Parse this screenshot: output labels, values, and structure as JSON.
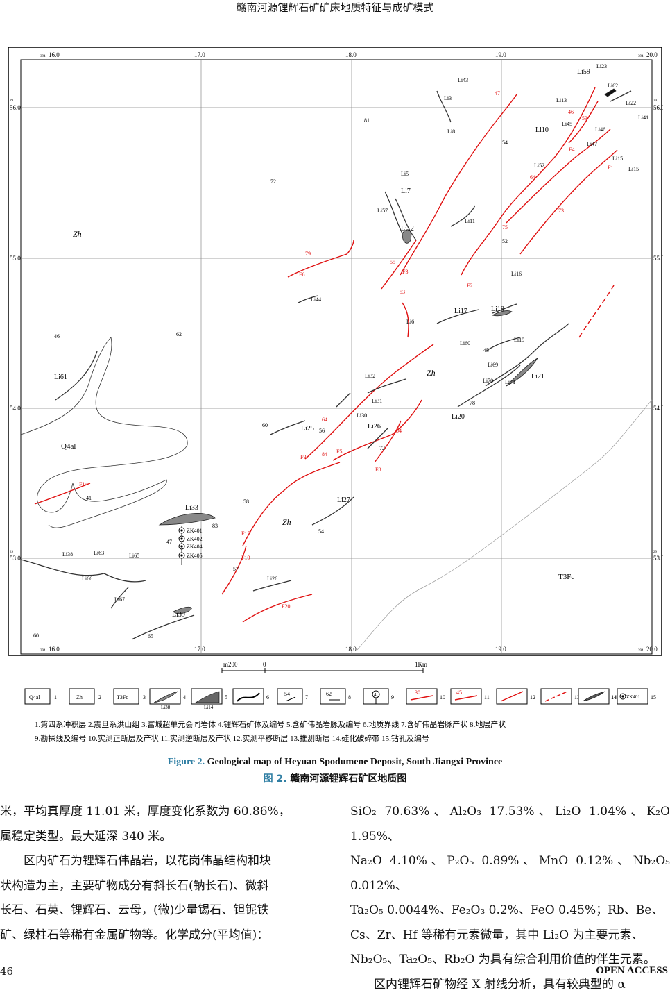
{
  "header": {
    "running_title": "赣南河源锂辉石矿矿床地质特征与成矿模式"
  },
  "map": {
    "x_ticks": [
      "16.0",
      "17.0",
      "18.0",
      "19.0",
      "20.0"
    ],
    "x_tick_prefix": "394",
    "y_ticks": [
      "56.0",
      "55.0",
      "54.0",
      "53.0"
    ],
    "y_tick_prefix": "29",
    "units": [
      {
        "label": "Zh"
      },
      {
        "label": "Zh"
      },
      {
        "label": "Zh"
      },
      {
        "label": "T3Fc"
      },
      {
        "label": "Q4al"
      }
    ],
    "ore_labels": [
      "Li23",
      "Li59",
      "Li43",
      "Li3",
      "Li62",
      "Li13",
      "Li22",
      "Li41",
      "Li45",
      "Li8",
      "Li10",
      "Li46",
      "Li47",
      "Li15",
      "Li52",
      "Li5",
      "Li7",
      "Li57",
      "Li12",
      "Li11",
      "Li16",
      "Li44",
      "Li17",
      "Li18",
      "Li6",
      "Li60",
      "Li19",
      "Li69",
      "Li32",
      "Li70",
      "Li71",
      "Li21",
      "Li31",
      "Li30",
      "Li25",
      "Li26",
      "Li20",
      "Li61",
      "Li27",
      "Li33",
      "Li38",
      "Li63",
      "Li65",
      "Li66",
      "Li67",
      "Li39",
      "Li26",
      "Li15"
    ],
    "fault_labels": [
      "F4",
      "F1",
      "F2",
      "F3",
      "F6",
      "F5",
      "F8",
      "F9",
      "F14",
      "F17",
      "F19",
      "F20"
    ],
    "attitudes": [
      "47",
      "46",
      "53",
      "64",
      "73",
      "75",
      "52",
      "54",
      "81",
      "72",
      "79",
      "55",
      "53",
      "45",
      "46",
      "62",
      "78",
      "60",
      "64",
      "56",
      "84",
      "54",
      "72",
      "58",
      "83",
      "47",
      "57",
      "41",
      "54",
      "60",
      "65"
    ],
    "drill_holes": [
      "ZK401",
      "ZK402",
      "ZK404",
      "ZK405"
    ],
    "scale": {
      "left": "m200",
      "zero": "0",
      "right": "1Km"
    },
    "legend_items": [
      {
        "num": "1",
        "sym": "Q4al"
      },
      {
        "num": "2",
        "sym": "Zh"
      },
      {
        "num": "3",
        "sym": "T3Fc"
      },
      {
        "num": "4",
        "sym": "Li38"
      },
      {
        "num": "5",
        "sym": "Li14"
      },
      {
        "num": "6",
        "sym": ""
      },
      {
        "num": "7",
        "sym": "54"
      },
      {
        "num": "8",
        "sym": "62"
      },
      {
        "num": "9",
        "sym": "4"
      },
      {
        "num": "10",
        "sym": "30"
      },
      {
        "num": "11",
        "sym": "45"
      },
      {
        "num": "12",
        "sym": ""
      },
      {
        "num": "13",
        "sym": ""
      },
      {
        "num": "14",
        "sym": ""
      },
      {
        "num": "15",
        "sym": "ZK401"
      }
    ],
    "legend_text_1": "1.第四系冲积层  2.震旦系洪山组  3.富城超单元会同岩体  4.锂辉石矿体及编号  5.含矿伟晶岩脉及编号  6.地质界线  7.含矿伟晶岩脉产状  8.地层产状",
    "legend_text_2": "9.勘探线及编号  10.实测正断层及产状  11.实测逆断层及产状  12.实测平移断层  13.推测断层  14.硅化破碎带  15.钻孔及编号"
  },
  "caption": {
    "en_num": "Figure 2.",
    "en_text": " Geological map of Heyuan Spodumene Deposit, South Jiangxi Province",
    "cn_num": "图 2.",
    "cn_text": "  赣南河源锂辉石矿区地质图"
  },
  "body": {
    "left": [
      "米，平均真厚度 11.01 米，厚度变化系数为 60.86%，",
      "属稳定类型。最大延深 340 米。",
      "　　区内矿石为锂辉石伟晶岩，以花岗伟晶结构和块",
      "状构造为主，主要矿物成分有斜长石(钠长石)、微斜",
      "长石、石英、锂辉石、云母，(微)少量锡石、钽铌铁",
      "矿、绿柱石等稀有金属矿物等。化学成分(平均值)："
    ],
    "right": [
      "SiO₂ 70.63%、Al₂O₃ 17.53%、Li₂O 1.04%、K₂O 1.95%、",
      "Na₂O 4.10%、P₂O₅ 0.89%、MnO 0.12%、Nb₂O₅ 0.012%、",
      "Ta₂O₅ 0.0044%、Fe₂O₃ 0.2%、FeO 0.45%；Rb、Be、",
      "Cs、Zr、Hf 等稀有元素微量，其中 Li₂O 为主要元素、",
      "Nb₂O₅、Ta₂O₅、Rb₂O 为具有综合利用价值的伴生元素。",
      "　　区内锂辉石矿物经 X 射线分析，具有较典型的 α"
    ]
  },
  "footer": {
    "page": "46",
    "access": "OPEN ACCESS"
  }
}
